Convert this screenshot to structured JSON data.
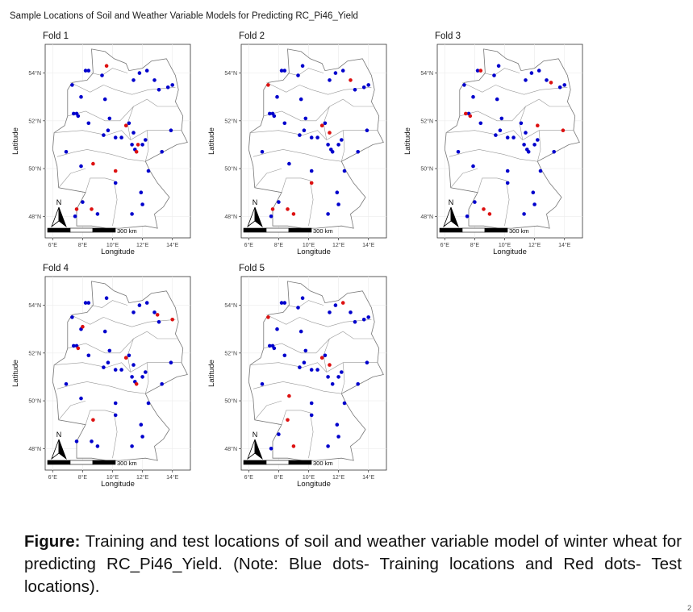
{
  "title": "Sample Locations of Soil and Weather Variable Models for Predicting RC_Pi46_Yield",
  "caption": {
    "label": "Figure:",
    "text": "Training and test locations of soil and weather variable model of winter wheat for predicting RC_Pi46_Yield. (Note: Blue dots- Training locations and Red dots- Test locations)."
  },
  "colors": {
    "training": "#0000cc",
    "test": "#dd1111",
    "border": "#777777"
  },
  "chart_data": [
    {
      "type": "scatter",
      "title": "Fold 1",
      "xlabel": "Longitude",
      "ylabel": "Latitude",
      "xlim": [
        5.5,
        15.2
      ],
      "ylim": [
        47.1,
        55.2
      ],
      "xticks": [
        "6°E",
        "8°E",
        "10°E",
        "12°E",
        "14°E"
      ],
      "yticks": [
        "48°N",
        "50°N",
        "52°N",
        "54°N"
      ],
      "scalebar": "300 km",
      "north_arrow": "N",
      "grid": true,
      "series": [
        {
          "name": "training",
          "points": [
            [
              8.2,
              54.1
            ],
            [
              8.4,
              54.1
            ],
            [
              11.8,
              54.0
            ],
            [
              12.3,
              54.1
            ],
            [
              12.8,
              53.7
            ],
            [
              13.1,
              53.3
            ],
            [
              13.7,
              53.4
            ],
            [
              14.0,
              53.5
            ],
            [
              11.4,
              53.7
            ],
            [
              9.3,
              53.9
            ],
            [
              7.3,
              53.5
            ],
            [
              7.9,
              53.0
            ],
            [
              9.5,
              52.9
            ],
            [
              7.4,
              52.3
            ],
            [
              7.6,
              52.3
            ],
            [
              7.7,
              52.2
            ],
            [
              8.4,
              51.9
            ],
            [
              9.8,
              52.1
            ],
            [
              11.1,
              51.9
            ],
            [
              11.4,
              51.5
            ],
            [
              12.0,
              51.0
            ],
            [
              12.2,
              51.2
            ],
            [
              11.3,
              51.0
            ],
            [
              11.5,
              50.8
            ],
            [
              13.9,
              51.6
            ],
            [
              9.7,
              51.6
            ],
            [
              9.4,
              51.4
            ],
            [
              10.2,
              51.3
            ],
            [
              6.9,
              50.7
            ],
            [
              13.3,
              50.7
            ],
            [
              10.6,
              51.3
            ],
            [
              7.9,
              50.1
            ],
            [
              10.2,
              49.4
            ],
            [
              12.4,
              49.9
            ],
            [
              11.9,
              49.0
            ],
            [
              12.0,
              48.5
            ],
            [
              8.0,
              48.6
            ],
            [
              9.0,
              48.1
            ],
            [
              7.5,
              48.0
            ],
            [
              11.3,
              48.1
            ]
          ]
        },
        {
          "name": "test",
          "points": [
            [
              9.6,
              54.3
            ],
            [
              10.9,
              51.8
            ],
            [
              11.7,
              51.0
            ],
            [
              11.6,
              50.7
            ],
            [
              8.7,
              50.2
            ],
            [
              10.2,
              49.9
            ],
            [
              7.6,
              48.3
            ],
            [
              8.6,
              48.3
            ]
          ]
        }
      ]
    },
    {
      "type": "scatter",
      "title": "Fold 2",
      "xlabel": "Longitude",
      "ylabel": "Latitude",
      "xlim": [
        5.5,
        15.2
      ],
      "ylim": [
        47.1,
        55.2
      ],
      "xticks": [
        "6°E",
        "8°E",
        "10°E",
        "12°E",
        "14°E"
      ],
      "yticks": [
        "48°N",
        "50°N",
        "52°N",
        "54°N"
      ],
      "scalebar": "300 km",
      "north_arrow": "N",
      "grid": true,
      "series": [
        {
          "name": "training",
          "points": [
            [
              9.6,
              54.3
            ],
            [
              8.2,
              54.1
            ],
            [
              8.4,
              54.1
            ],
            [
              11.8,
              54.0
            ],
            [
              12.3,
              54.1
            ],
            [
              13.1,
              53.3
            ],
            [
              13.7,
              53.4
            ],
            [
              14.0,
              53.5
            ],
            [
              11.4,
              53.7
            ],
            [
              9.3,
              53.9
            ],
            [
              7.9,
              53.0
            ],
            [
              9.5,
              52.9
            ],
            [
              7.4,
              52.3
            ],
            [
              7.6,
              52.3
            ],
            [
              7.7,
              52.2
            ],
            [
              8.4,
              51.9
            ],
            [
              9.8,
              52.1
            ],
            [
              11.1,
              51.9
            ],
            [
              12.0,
              51.0
            ],
            [
              11.6,
              50.7
            ],
            [
              12.2,
              51.2
            ],
            [
              11.3,
              51.0
            ],
            [
              11.5,
              50.8
            ],
            [
              13.9,
              51.6
            ],
            [
              9.7,
              51.6
            ],
            [
              9.4,
              51.4
            ],
            [
              10.2,
              51.3
            ],
            [
              6.9,
              50.7
            ],
            [
              13.3,
              50.7
            ],
            [
              10.6,
              51.3
            ],
            [
              8.7,
              50.2
            ],
            [
              10.2,
              49.9
            ],
            [
              12.4,
              49.9
            ],
            [
              11.9,
              49.0
            ],
            [
              12.0,
              48.5
            ],
            [
              8.0,
              48.6
            ],
            [
              7.5,
              48.0
            ],
            [
              11.3,
              48.1
            ]
          ]
        },
        {
          "name": "test",
          "points": [
            [
              7.3,
              53.5
            ],
            [
              12.8,
              53.7
            ],
            [
              10.9,
              51.8
            ],
            [
              11.4,
              51.5
            ],
            [
              10.2,
              49.4
            ],
            [
              7.6,
              48.3
            ],
            [
              8.6,
              48.3
            ],
            [
              9.0,
              48.1
            ]
          ]
        }
      ]
    },
    {
      "type": "scatter",
      "title": "Fold 3",
      "xlabel": "Longitude",
      "ylabel": "Latitude",
      "xlim": [
        5.5,
        15.2
      ],
      "ylim": [
        47.1,
        55.2
      ],
      "xticks": [
        "6°E",
        "8°E",
        "10°E",
        "12°E",
        "14°E"
      ],
      "yticks": [
        "48°N",
        "50°N",
        "52°N",
        "54°N"
      ],
      "scalebar": "300 km",
      "north_arrow": "N",
      "grid": true,
      "series": [
        {
          "name": "training",
          "points": [
            [
              9.6,
              54.3
            ],
            [
              8.2,
              54.1
            ],
            [
              11.8,
              54.0
            ],
            [
              12.3,
              54.1
            ],
            [
              12.8,
              53.7
            ],
            [
              13.7,
              53.4
            ],
            [
              14.0,
              53.5
            ],
            [
              11.4,
              53.7
            ],
            [
              9.3,
              53.9
            ],
            [
              7.3,
              53.5
            ],
            [
              7.9,
              53.0
            ],
            [
              9.5,
              52.9
            ],
            [
              7.6,
              52.3
            ],
            [
              8.4,
              51.9
            ],
            [
              9.8,
              52.1
            ],
            [
              11.1,
              51.9
            ],
            [
              11.4,
              51.5
            ],
            [
              12.0,
              51.0
            ],
            [
              11.6,
              50.7
            ],
            [
              12.2,
              51.2
            ],
            [
              11.3,
              51.0
            ],
            [
              11.5,
              50.8
            ],
            [
              9.7,
              51.6
            ],
            [
              9.4,
              51.4
            ],
            [
              10.2,
              51.3
            ],
            [
              6.9,
              50.7
            ],
            [
              13.3,
              50.7
            ],
            [
              10.6,
              51.3
            ],
            [
              7.9,
              50.1
            ],
            [
              10.2,
              49.9
            ],
            [
              10.2,
              49.4
            ],
            [
              12.4,
              49.9
            ],
            [
              11.9,
              49.0
            ],
            [
              12.0,
              48.5
            ],
            [
              8.0,
              48.6
            ],
            [
              7.5,
              48.0
            ],
            [
              11.3,
              48.1
            ]
          ]
        },
        {
          "name": "test",
          "points": [
            [
              8.4,
              54.1
            ],
            [
              13.1,
              53.6
            ],
            [
              7.4,
              52.3
            ],
            [
              7.7,
              52.2
            ],
            [
              12.2,
              51.8
            ],
            [
              13.9,
              51.6
            ],
            [
              8.6,
              48.3
            ],
            [
              9.0,
              48.1
            ]
          ]
        }
      ]
    },
    {
      "type": "scatter",
      "title": "Fold 4",
      "xlabel": "Longitude",
      "ylabel": "Latitude",
      "xlim": [
        5.5,
        15.2
      ],
      "ylim": [
        47.1,
        55.2
      ],
      "xticks": [
        "6°E",
        "8°E",
        "10°E",
        "12°E",
        "14°E"
      ],
      "yticks": [
        "48°N",
        "50°N",
        "52°N",
        "54°N"
      ],
      "scalebar": "300 km",
      "north_arrow": "N",
      "grid": true,
      "series": [
        {
          "name": "training",
          "points": [
            [
              9.6,
              54.3
            ],
            [
              8.2,
              54.1
            ],
            [
              8.4,
              54.1
            ],
            [
              11.8,
              54.0
            ],
            [
              12.3,
              54.1
            ],
            [
              12.8,
              53.7
            ],
            [
              13.1,
              53.3
            ],
            [
              11.4,
              53.7
            ],
            [
              7.3,
              53.5
            ],
            [
              7.9,
              53.0
            ],
            [
              9.5,
              52.9
            ],
            [
              7.4,
              52.3
            ],
            [
              7.6,
              52.3
            ],
            [
              8.4,
              51.9
            ],
            [
              9.8,
              52.1
            ],
            [
              11.1,
              51.9
            ],
            [
              11.4,
              51.5
            ],
            [
              12.0,
              51.0
            ],
            [
              12.2,
              51.2
            ],
            [
              11.3,
              51.0
            ],
            [
              11.5,
              50.8
            ],
            [
              13.9,
              51.6
            ],
            [
              9.7,
              51.6
            ],
            [
              9.4,
              51.4
            ],
            [
              10.2,
              51.3
            ],
            [
              6.9,
              50.7
            ],
            [
              13.3,
              50.7
            ],
            [
              10.6,
              51.3
            ],
            [
              7.9,
              50.1
            ],
            [
              10.2,
              49.9
            ],
            [
              10.2,
              49.4
            ],
            [
              12.4,
              49.9
            ],
            [
              11.9,
              49.0
            ],
            [
              12.0,
              48.5
            ],
            [
              7.6,
              48.3
            ],
            [
              8.6,
              48.3
            ],
            [
              9.0,
              48.1
            ],
            [
              11.3,
              48.1
            ]
          ]
        },
        {
          "name": "test",
          "points": [
            [
              13.0,
              53.6
            ],
            [
              14.0,
              53.4
            ],
            [
              8.0,
              53.1
            ],
            [
              7.7,
              52.2
            ],
            [
              10.9,
              51.8
            ],
            [
              11.6,
              50.7
            ],
            [
              8.7,
              49.2
            ]
          ]
        }
      ]
    },
    {
      "type": "scatter",
      "title": "Fold 5",
      "xlabel": "Longitude",
      "ylabel": "Latitude",
      "xlim": [
        5.5,
        15.2
      ],
      "ylim": [
        47.1,
        55.2
      ],
      "xticks": [
        "6°E",
        "8°E",
        "10°E",
        "12°E",
        "14°E"
      ],
      "yticks": [
        "48°N",
        "50°N",
        "52°N",
        "54°N"
      ],
      "scalebar": "300 km",
      "north_arrow": "N",
      "grid": true,
      "series": [
        {
          "name": "training",
          "points": [
            [
              9.6,
              54.3
            ],
            [
              8.2,
              54.1
            ],
            [
              8.4,
              54.1
            ],
            [
              11.8,
              54.0
            ],
            [
              12.8,
              53.7
            ],
            [
              13.1,
              53.3
            ],
            [
              13.7,
              53.4
            ],
            [
              14.0,
              53.5
            ],
            [
              11.4,
              53.7
            ],
            [
              9.3,
              53.9
            ],
            [
              7.9,
              53.0
            ],
            [
              9.5,
              52.9
            ],
            [
              7.4,
              52.3
            ],
            [
              7.6,
              52.3
            ],
            [
              7.7,
              52.2
            ],
            [
              8.4,
              51.9
            ],
            [
              9.8,
              52.1
            ],
            [
              11.1,
              51.9
            ],
            [
              12.0,
              51.0
            ],
            [
              11.6,
              50.7
            ],
            [
              12.2,
              51.2
            ],
            [
              11.3,
              51.0
            ],
            [
              13.9,
              51.6
            ],
            [
              9.7,
              51.6
            ],
            [
              9.4,
              51.4
            ],
            [
              10.2,
              51.3
            ],
            [
              6.9,
              50.7
            ],
            [
              13.3,
              50.7
            ],
            [
              10.6,
              51.3
            ],
            [
              10.2,
              49.9
            ],
            [
              10.2,
              49.4
            ],
            [
              12.4,
              49.9
            ],
            [
              11.9,
              49.0
            ],
            [
              12.0,
              48.5
            ],
            [
              8.0,
              48.6
            ],
            [
              7.5,
              48.0
            ],
            [
              11.3,
              48.1
            ]
          ]
        },
        {
          "name": "test",
          "points": [
            [
              12.3,
              54.1
            ],
            [
              7.3,
              53.5
            ],
            [
              10.9,
              51.8
            ],
            [
              11.4,
              51.5
            ],
            [
              8.7,
              50.2
            ],
            [
              8.6,
              49.2
            ],
            [
              9.0,
              48.1
            ]
          ]
        }
      ]
    }
  ]
}
